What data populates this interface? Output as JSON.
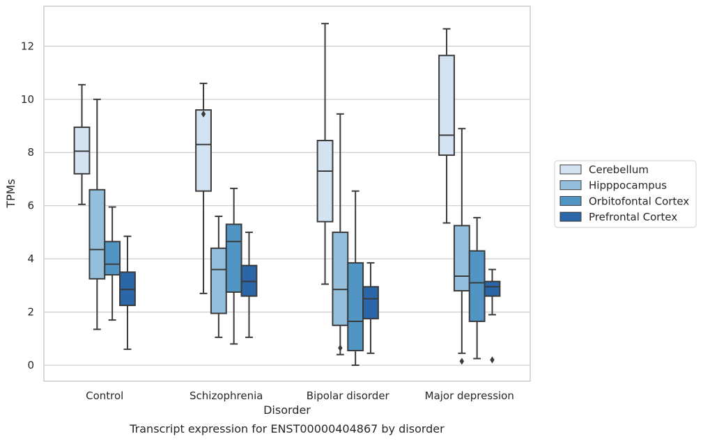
{
  "chart_data": {
    "type": "box",
    "title": "",
    "caption": "Transcript expression for ENST00000404867 by disorder",
    "xlabel": "Disorder",
    "ylabel": "TPMs",
    "ylim": [
      -0.6,
      13.5
    ],
    "yticks": [
      0,
      2,
      4,
      6,
      8,
      10,
      12
    ],
    "grid": "horizontal",
    "legend_position": "right",
    "categories": [
      "Control",
      "Schizophrenia",
      "Bipolar disorder",
      "Major depression"
    ],
    "series": [
      {
        "name": "Cerebellum",
        "color": "#d4e3f2",
        "boxes": [
          {
            "whislo": 6.05,
            "q1": 7.2,
            "med": 8.05,
            "q3": 8.95,
            "whishi": 10.55,
            "fliers": []
          },
          {
            "whislo": 2.7,
            "q1": 6.55,
            "med": 8.3,
            "q3": 9.6,
            "whishi": 10.6,
            "fliers": [
              9.45
            ]
          },
          {
            "whislo": 3.05,
            "q1": 5.4,
            "med": 7.3,
            "q3": 8.45,
            "whishi": 12.85,
            "fliers": []
          },
          {
            "whislo": 5.35,
            "q1": 7.9,
            "med": 8.65,
            "q3": 11.65,
            "whishi": 12.65,
            "fliers": []
          }
        ]
      },
      {
        "name": "Hipppocampus",
        "color": "#94bfdc",
        "boxes": [
          {
            "whislo": 1.35,
            "q1": 3.25,
            "med": 4.35,
            "q3": 6.6,
            "whishi": 10.0,
            "fliers": []
          },
          {
            "whislo": 1.05,
            "q1": 1.95,
            "med": 3.6,
            "q3": 4.4,
            "whishi": 5.6,
            "fliers": []
          },
          {
            "whislo": 0.4,
            "q1": 1.5,
            "med": 2.85,
            "q3": 5.0,
            "whishi": 9.45,
            "fliers": [
              0.65
            ]
          },
          {
            "whislo": 0.45,
            "q1": 2.8,
            "med": 3.35,
            "q3": 5.25,
            "whishi": 8.9,
            "fliers": [
              0.15
            ]
          }
        ]
      },
      {
        "name": "Orbitofontal Cortex",
        "color": "#5195c4",
        "boxes": [
          {
            "whislo": 1.7,
            "q1": 3.4,
            "med": 3.8,
            "q3": 4.65,
            "whishi": 5.95,
            "fliers": []
          },
          {
            "whislo": 0.8,
            "q1": 2.75,
            "med": 4.65,
            "q3": 5.3,
            "whishi": 6.65,
            "fliers": []
          },
          {
            "whislo": 0.0,
            "q1": 0.55,
            "med": 1.65,
            "q3": 3.85,
            "whishi": 6.55,
            "fliers": []
          },
          {
            "whislo": 0.25,
            "q1": 1.65,
            "med": 3.1,
            "q3": 4.3,
            "whishi": 5.55,
            "fliers": []
          }
        ]
      },
      {
        "name": "Prefrontal Cortex",
        "color": "#2a66a8",
        "boxes": [
          {
            "whislo": 0.6,
            "q1": 2.25,
            "med": 2.85,
            "q3": 3.5,
            "whishi": 4.85,
            "fliers": []
          },
          {
            "whislo": 1.05,
            "q1": 2.6,
            "med": 3.15,
            "q3": 3.75,
            "whishi": 5.0,
            "fliers": []
          },
          {
            "whislo": 0.45,
            "q1": 1.75,
            "med": 2.5,
            "q3": 2.95,
            "whishi": 3.85,
            "fliers": []
          },
          {
            "whislo": 1.9,
            "q1": 2.6,
            "med": 2.95,
            "q3": 3.15,
            "whishi": 3.6,
            "fliers": [
              0.2
            ]
          }
        ]
      }
    ]
  }
}
